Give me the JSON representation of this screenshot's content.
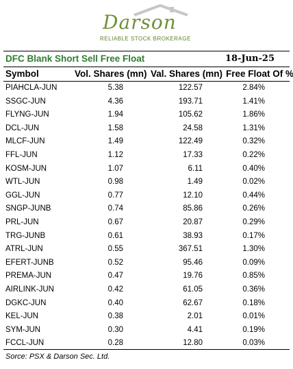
{
  "logo": {
    "name": "Darson",
    "tagline": "RELIABLE STOCK BROKERAGE",
    "brand_color": "#6f8f3a"
  },
  "table": {
    "title": "DFC Blank Short Sell Free Float",
    "date": "18-Jun-25",
    "headers": [
      "Symbol",
      "Vol. Shares (mn)",
      "Val. Shares (mn)",
      "Free Float Of %"
    ],
    "rows": [
      [
        "PIAHCLA-JUN",
        "5.38",
        "122.57",
        "2.84%"
      ],
      [
        "SSGC-JUN",
        "4.36",
        "193.71",
        "1.41%"
      ],
      [
        "FLYNG-JUN",
        "1.94",
        "105.62",
        "1.86%"
      ],
      [
        "DCL-JUN",
        "1.58",
        "24.58",
        "1.31%"
      ],
      [
        "MLCF-JUN",
        "1.49",
        "122.49",
        "0.32%"
      ],
      [
        "FFL-JUN",
        "1.12",
        "17.33",
        "0.22%"
      ],
      [
        "KOSM-JUN",
        "1.07",
        "6.11",
        "0.40%"
      ],
      [
        "WTL-JUN",
        "0.98",
        "1.49",
        "0.02%"
      ],
      [
        "GGL-JUN",
        "0.77",
        "12.10",
        "0.44%"
      ],
      [
        "SNGP-JUNB",
        "0.74",
        "85.86",
        "0.26%"
      ],
      [
        "PRL-JUN",
        "0.67",
        "20.87",
        "0.29%"
      ],
      [
        "TRG-JUNB",
        "0.61",
        "38.93",
        "0.17%"
      ],
      [
        "ATRL-JUN",
        "0.55",
        "367.51",
        "1.30%"
      ],
      [
        "EFERT-JUNB",
        "0.52",
        "95.46",
        "0.09%"
      ],
      [
        "PREMA-JUN",
        "0.47",
        "19.76",
        "0.85%"
      ],
      [
        "AIRLINK-JUN",
        "0.42",
        "61.05",
        "0.36%"
      ],
      [
        "DGKC-JUN",
        "0.40",
        "62.67",
        "0.18%"
      ],
      [
        "KEL-JUN",
        "0.38",
        "2.01",
        "0.01%"
      ],
      [
        "SYM-JUN",
        "0.30",
        "4.41",
        "0.19%"
      ],
      [
        "FCCL-JUN",
        "0.28",
        "12.80",
        "0.03%"
      ]
    ],
    "source": "Sorce: PSX & Darson Sec. Ltd.",
    "title_color": "#2e7d2e"
  }
}
